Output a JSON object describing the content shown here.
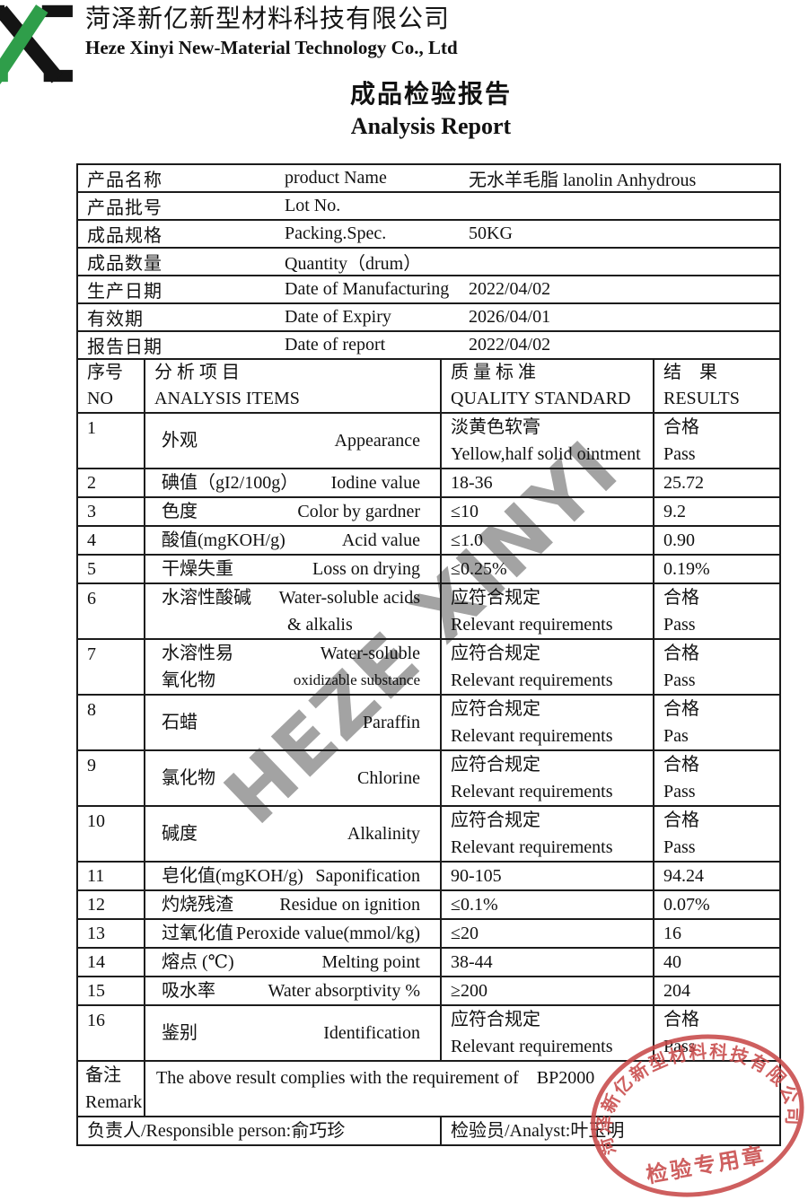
{
  "header": {
    "company_cn": "菏泽新亿新型材料科技有限公司",
    "company_en": "Heze Xinyi New-Material Technology Co., Ltd",
    "title_cn": "成品检验报告",
    "title_en": "Analysis Report"
  },
  "watermark": {
    "text": "HEZE XINYI"
  },
  "info_rows": [
    {
      "cn": "产品名称",
      "en": "product Name",
      "value": "无水羊毛脂  lanolin Anhydrous"
    },
    {
      "cn": "产品批号",
      "en": "Lot No.",
      "value": ""
    },
    {
      "cn": "成品规格",
      "en": "Packing.Spec.",
      "value": "50KG"
    },
    {
      "cn": "成品数量",
      "en": "Quantity（drum）",
      "value": ""
    },
    {
      "cn": "生产日期",
      "en": "Date of Manufacturing",
      "value": "2022/04/02"
    },
    {
      "cn": "有效期",
      "en": "Date of Expiry",
      "value": "2026/04/01"
    },
    {
      "cn": "报告日期",
      "en": "Date of report",
      "value": "2022/04/02"
    }
  ],
  "analysis_header": {
    "no_cn": "序号",
    "no_en": "NO",
    "items_cn": "分 析 项 目",
    "items_en": "ANALYSIS ITEMS",
    "standard_cn": "质 量 标 准",
    "standard_en": "QUALITY STANDARD",
    "results_cn": "结　果",
    "results_en": "RESULTS"
  },
  "analysis_rows": [
    {
      "no": "1",
      "item_lines": [
        {
          "cn": "外观",
          "en": "Appearance"
        }
      ],
      "std_lines": [
        "淡黄色软膏",
        "Yellow,half solid ointment"
      ],
      "std_first_center": true,
      "res_lines": [
        "合格",
        "Pass"
      ]
    },
    {
      "no": "2",
      "item_lines": [
        {
          "cn": "碘值（gI2/100g）",
          "en": "Iodine value"
        }
      ],
      "std_lines": [
        "18-36"
      ],
      "res_lines": [
        "25.72"
      ]
    },
    {
      "no": "3",
      "item_lines": [
        {
          "cn": "色度",
          "en": "Color by gardner"
        }
      ],
      "std_lines": [
        "≤10"
      ],
      "res_lines": [
        "9.2"
      ]
    },
    {
      "no": "4",
      "item_lines": [
        {
          "cn": "酸值(mgKOH/g)",
          "en": "Acid value"
        }
      ],
      "std_lines": [
        "≤1.0"
      ],
      "res_lines": [
        "0.90"
      ]
    },
    {
      "no": "5",
      "item_lines": [
        {
          "cn": "干燥失重",
          "en": "Loss on drying"
        }
      ],
      "std_lines": [
        "≤0.25%"
      ],
      "res_lines": [
        "0.19%"
      ]
    },
    {
      "no": "6",
      "item_lines": [
        {
          "cn": "水溶性酸碱",
          "en": "Water-soluble acids"
        },
        {
          "cn": "",
          "en": "& alkalis"
        }
      ],
      "std_lines": [
        "应符合规定",
        "Relevant requirements"
      ],
      "res_lines": [
        "合格",
        "Pass"
      ]
    },
    {
      "no": "7",
      "item_lines": [
        {
          "cn": "水溶性易",
          "en": "Water-soluble"
        },
        {
          "cn": "氧化物",
          "en": "oxidizable substance",
          "small": true
        }
      ],
      "std_lines": [
        "应符合规定",
        "Relevant requirements"
      ],
      "res_lines": [
        "合格",
        "Pass"
      ]
    },
    {
      "no": "8",
      "item_lines": [
        {
          "cn": "石蜡",
          "en": "Paraffin"
        }
      ],
      "std_lines": [
        "应符合规定",
        "Relevant requirements"
      ],
      "res_lines": [
        "合格",
        "Pas"
      ]
    },
    {
      "no": "9",
      "item_lines": [
        {
          "cn": "氯化物",
          "en": "Chlorine"
        }
      ],
      "std_lines": [
        "应符合规定",
        "Relevant requirements"
      ],
      "res_lines": [
        "合格",
        "Pass"
      ]
    },
    {
      "no": "10",
      "item_lines": [
        {
          "cn": "碱度",
          "en": "Alkalinity"
        }
      ],
      "std_lines": [
        "应符合规定",
        "Relevant requirements"
      ],
      "res_lines": [
        "合格",
        "Pass"
      ]
    },
    {
      "no": "11",
      "item_lines": [
        {
          "cn": "皂化值(mgKOH/g)",
          "en": "Saponification"
        }
      ],
      "std_lines": [
        "90-105"
      ],
      "res_lines": [
        "94.24"
      ]
    },
    {
      "no": "12",
      "item_lines": [
        {
          "cn": "灼烧残渣",
          "en": "Residue on ignition"
        }
      ],
      "std_lines": [
        "≤0.1%"
      ],
      "res_lines": [
        "0.07%"
      ]
    },
    {
      "no": "13",
      "item_lines": [
        {
          "cn": "过氧化值",
          "en": "Peroxide value(mmol/kg)"
        }
      ],
      "std_lines": [
        "≤20"
      ],
      "res_lines": [
        "16"
      ]
    },
    {
      "no": "14",
      "item_lines": [
        {
          "cn": "熔点 (℃)",
          "en": "Melting point"
        }
      ],
      "std_lines": [
        "38-44"
      ],
      "res_lines": [
        "40"
      ]
    },
    {
      "no": "15",
      "item_lines": [
        {
          "cn": "吸水率",
          "en": "Water absorptivity %"
        }
      ],
      "std_lines": [
        "≥200"
      ],
      "res_lines": [
        "204"
      ]
    },
    {
      "no": "16",
      "item_lines": [
        {
          "cn": "鉴别",
          "en": "Identification"
        }
      ],
      "std_lines": [
        "应符合规定",
        "Relevant requirements"
      ],
      "res_lines": [
        "合格",
        "Pass"
      ]
    }
  ],
  "remark": {
    "label_cn": "备注",
    "label_en": "Remark",
    "text": "The above result complies with the requirement of　BP2000"
  },
  "footer": {
    "responsible": "负责人/Responsible person:俞巧珍",
    "analyst": "检验员/Analyst:叶玉明"
  },
  "stamp": {
    "ring_text": "菏泽新亿新型材料科技有限公司",
    "center_text": "检验专用章",
    "color": "#c84a4a"
  },
  "logo": {
    "green": "#2f9e4a",
    "black": "#141414"
  }
}
